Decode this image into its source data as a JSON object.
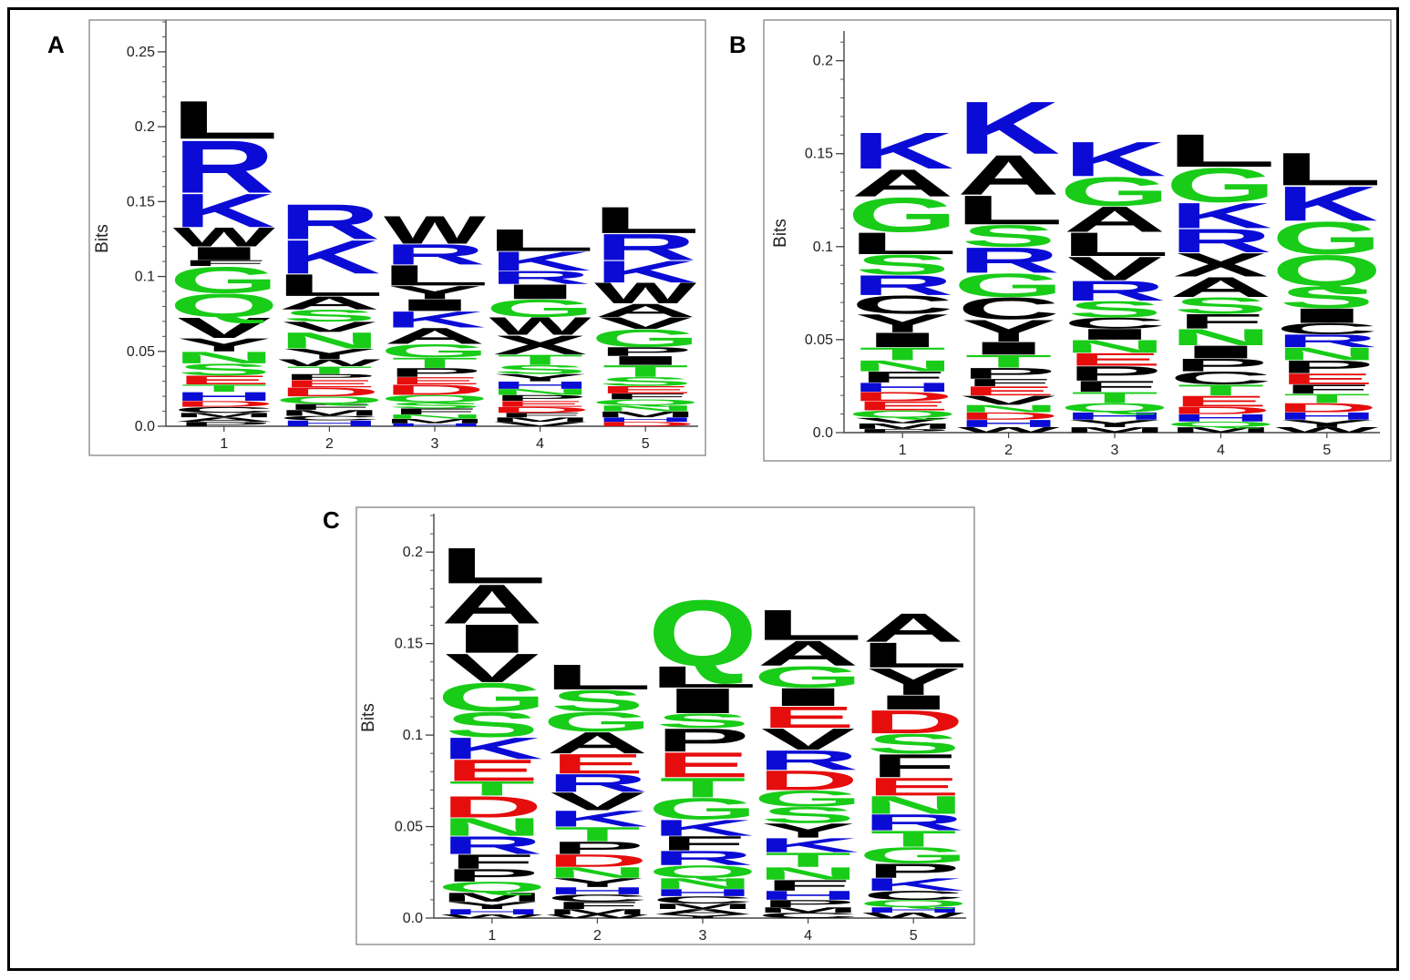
{
  "colors": {
    "hydrophobic": "#000000",
    "basic": "#0b0bd6",
    "acidic": "#e60d0d",
    "polar": "#18cc18"
  },
  "chart_data": [
    {
      "type": "sequence-logo",
      "panel": "A",
      "ylabel": "Bits",
      "ylim": [
        0,
        0.27
      ],
      "yticks": [
        0.0,
        0.05,
        0.1,
        0.15,
        0.2,
        0.25
      ],
      "ytick_labels": [
        "0.0",
        "0.05",
        "0.1",
        "0.15",
        "0.2",
        "0.25"
      ],
      "positions": [
        "1",
        "2",
        "3",
        "4",
        "5"
      ],
      "stacks": [
        [
          [
            "L",
            0.026
          ],
          [
            "R",
            0.036
          ],
          [
            "K",
            0.023
          ],
          [
            "W",
            0.013
          ],
          [
            "I",
            0.009
          ],
          [
            "F",
            0.004
          ],
          [
            "G",
            0.018
          ],
          [
            "Q",
            0.016
          ],
          [
            "V",
            0.014
          ],
          [
            "Y",
            0.009
          ],
          [
            "N",
            0.008
          ],
          [
            "S",
            0.008
          ],
          [
            "E",
            0.006
          ],
          [
            "T",
            0.005
          ],
          [
            "H",
            0.006
          ],
          [
            "D",
            0.004
          ],
          [
            "C",
            0.004
          ],
          [
            "M",
            0.003
          ],
          [
            "A",
            0.003
          ],
          [
            "P",
            0.003
          ]
        ],
        [
          [
            "R",
            0.024
          ],
          [
            "K",
            0.023
          ],
          [
            "L",
            0.015
          ],
          [
            "A",
            0.009
          ],
          [
            "S",
            0.008
          ],
          [
            "V",
            0.007
          ],
          [
            "N",
            0.011
          ],
          [
            "Y",
            0.007
          ],
          [
            "W",
            0.005
          ],
          [
            "T",
            0.005
          ],
          [
            "P",
            0.004
          ],
          [
            "E",
            0.005
          ],
          [
            "D",
            0.006
          ],
          [
            "Q",
            0.005
          ],
          [
            "F",
            0.004
          ],
          [
            "M",
            0.004
          ],
          [
            "C",
            0.003
          ],
          [
            "H",
            0.004
          ]
        ],
        [
          [
            "W",
            0.019
          ],
          [
            "R",
            0.014
          ],
          [
            "L",
            0.014
          ],
          [
            "Y",
            0.009
          ],
          [
            "I",
            0.008
          ],
          [
            "K",
            0.011
          ],
          [
            "A",
            0.011
          ],
          [
            "G",
            0.009
          ],
          [
            "T",
            0.007
          ],
          [
            "P",
            0.006
          ],
          [
            "E",
            0.005
          ],
          [
            "D",
            0.007
          ],
          [
            "Q",
            0.005
          ],
          [
            "S",
            0.004
          ],
          [
            "F",
            0.004
          ],
          [
            "N",
            0.003
          ],
          [
            "M",
            0.003
          ],
          [
            "H",
            0.002
          ]
        ],
        [
          [
            "L",
            0.015
          ],
          [
            "K",
            0.013
          ],
          [
            "R",
            0.009
          ],
          [
            "I",
            0.01
          ],
          [
            "G",
            0.012
          ],
          [
            "W",
            0.012
          ],
          [
            "X",
            0.013
          ],
          [
            "T",
            0.007
          ],
          [
            "S",
            0.006
          ],
          [
            "Y",
            0.005
          ],
          [
            "H",
            0.005
          ],
          [
            "N",
            0.004
          ],
          [
            "P",
            0.004
          ],
          [
            "E",
            0.004
          ],
          [
            "D",
            0.004
          ],
          [
            "F",
            0.003
          ],
          [
            "M",
            0.003
          ],
          [
            "V",
            0.003
          ]
        ],
        [
          [
            "L",
            0.018
          ],
          [
            "R",
            0.018
          ],
          [
            "K",
            0.015
          ],
          [
            "W",
            0.014
          ],
          [
            "A",
            0.009
          ],
          [
            "V",
            0.008
          ],
          [
            "G",
            0.012
          ],
          [
            "P",
            0.006
          ],
          [
            "I",
            0.006
          ],
          [
            "T",
            0.008
          ],
          [
            "S",
            0.006
          ],
          [
            "E",
            0.005
          ],
          [
            "F",
            0.004
          ],
          [
            "Q",
            0.004
          ],
          [
            "N",
            0.004
          ],
          [
            "M",
            0.004
          ],
          [
            "H",
            0.003
          ],
          [
            "D",
            0.003
          ]
        ]
      ]
    },
    {
      "type": "sequence-logo",
      "panel": "B",
      "ylabel": "Bits",
      "ylim": [
        0,
        0.215
      ],
      "yticks": [
        0.0,
        0.05,
        0.1,
        0.15,
        0.2
      ],
      "ytick_labels": [
        "0.0",
        "0.05",
        "0.1",
        "0.15",
        "0.2"
      ],
      "positions": [
        "1",
        "2",
        "3",
        "4",
        "5"
      ],
      "stacks": [
        [
          [
            "K",
            0.02
          ],
          [
            "A",
            0.015
          ],
          [
            "G",
            0.019
          ],
          [
            "L",
            0.012
          ],
          [
            "S",
            0.011
          ],
          [
            "R",
            0.011
          ],
          [
            "C",
            0.01
          ],
          [
            "Y",
            0.01
          ],
          [
            "I",
            0.008
          ],
          [
            "T",
            0.007
          ],
          [
            "N",
            0.006
          ],
          [
            "F",
            0.006
          ],
          [
            "H",
            0.005
          ],
          [
            "D",
            0.005
          ],
          [
            "E",
            0.005
          ],
          [
            "Q",
            0.004
          ],
          [
            "V",
            0.003
          ],
          [
            "M",
            0.003
          ],
          [
            "P",
            0.002
          ]
        ],
        [
          [
            "K",
            0.029
          ],
          [
            "A",
            0.022
          ],
          [
            "L",
            0.016
          ],
          [
            "S",
            0.012
          ],
          [
            "R",
            0.014
          ],
          [
            "G",
            0.013
          ],
          [
            "C",
            0.012
          ],
          [
            "Y",
            0.012
          ],
          [
            "I",
            0.007
          ],
          [
            "T",
            0.007
          ],
          [
            "P",
            0.006
          ],
          [
            "F",
            0.004
          ],
          [
            "E",
            0.005
          ],
          [
            "V",
            0.005
          ],
          [
            "N",
            0.004
          ],
          [
            "D",
            0.004
          ],
          [
            "H",
            0.004
          ],
          [
            "W",
            0.003
          ]
        ],
        [
          [
            "K",
            0.019
          ],
          [
            "G",
            0.016
          ],
          [
            "A",
            0.014
          ],
          [
            "L",
            0.013
          ],
          [
            "V",
            0.013
          ],
          [
            "R",
            0.011
          ],
          [
            "S",
            0.009
          ],
          [
            "C",
            0.006
          ],
          [
            "I",
            0.006
          ],
          [
            "N",
            0.007
          ],
          [
            "E",
            0.007
          ],
          [
            "P",
            0.008
          ],
          [
            "F",
            0.006
          ],
          [
            "T",
            0.006
          ],
          [
            "Q",
            0.005
          ],
          [
            "H",
            0.004
          ],
          [
            "Y",
            0.004
          ],
          [
            "M",
            0.003
          ]
        ],
        [
          [
            "L",
            0.018
          ],
          [
            "G",
            0.019
          ],
          [
            "K",
            0.014
          ],
          [
            "R",
            0.013
          ],
          [
            "X",
            0.013
          ],
          [
            "A",
            0.011
          ],
          [
            "S",
            0.009
          ],
          [
            "F",
            0.008
          ],
          [
            "N",
            0.009
          ],
          [
            "I",
            0.007
          ],
          [
            "P",
            0.007
          ],
          [
            "C",
            0.007
          ],
          [
            "T",
            0.006
          ],
          [
            "E",
            0.006
          ],
          [
            "D",
            0.004
          ],
          [
            "H",
            0.004
          ],
          [
            "Q",
            0.003
          ],
          [
            "M",
            0.003
          ]
        ],
        [
          [
            "L",
            0.018
          ],
          [
            "K",
            0.019
          ],
          [
            "G",
            0.018
          ],
          [
            "Q",
            0.017
          ],
          [
            "S",
            0.012
          ],
          [
            "I",
            0.008
          ],
          [
            "C",
            0.006
          ],
          [
            "R",
            0.007
          ],
          [
            "N",
            0.007
          ],
          [
            "P",
            0.007
          ],
          [
            "E",
            0.006
          ],
          [
            "F",
            0.005
          ],
          [
            "T",
            0.005
          ],
          [
            "D",
            0.005
          ],
          [
            "H",
            0.004
          ],
          [
            "Y",
            0.004
          ],
          [
            "W",
            0.003
          ]
        ]
      ]
    },
    {
      "type": "sequence-logo",
      "panel": "C",
      "ylabel": "Bits",
      "ylim": [
        0,
        0.22
      ],
      "yticks": [
        0.0,
        0.05,
        0.1,
        0.15,
        0.2
      ],
      "ytick_labels": [
        "0.0",
        "0.05",
        "0.1",
        "0.15",
        "0.2"
      ],
      "positions": [
        "1",
        "2",
        "3",
        "4",
        "5"
      ],
      "stacks": [
        [
          [
            "L",
            0.02
          ],
          [
            "A",
            0.022
          ],
          [
            "I",
            0.016
          ],
          [
            "V",
            0.016
          ],
          [
            "G",
            0.016
          ],
          [
            "S",
            0.014
          ],
          [
            "K",
            0.012
          ],
          [
            "E",
            0.012
          ],
          [
            "T",
            0.008
          ],
          [
            "D",
            0.012
          ],
          [
            "N",
            0.01
          ],
          [
            "R",
            0.01
          ],
          [
            "F",
            0.008
          ],
          [
            "P",
            0.007
          ],
          [
            "Q",
            0.006
          ],
          [
            "M",
            0.005
          ],
          [
            "Y",
            0.004
          ],
          [
            "H",
            0.003
          ],
          [
            "W",
            0.002
          ]
        ],
        [
          [
            "L",
            0.014
          ],
          [
            "S",
            0.012
          ],
          [
            "G",
            0.011
          ],
          [
            "A",
            0.012
          ],
          [
            "E",
            0.011
          ],
          [
            "R",
            0.01
          ],
          [
            "V",
            0.01
          ],
          [
            "K",
            0.009
          ],
          [
            "T",
            0.008
          ],
          [
            "P",
            0.007
          ],
          [
            "D",
            0.007
          ],
          [
            "N",
            0.006
          ],
          [
            "Y",
            0.005
          ],
          [
            "H",
            0.004
          ],
          [
            "C",
            0.004
          ],
          [
            "F",
            0.004
          ],
          [
            "M",
            0.003
          ],
          [
            "W",
            0.002
          ]
        ],
        [
          [
            "Q",
            0.037
          ],
          [
            "L",
            0.012
          ],
          [
            "I",
            0.014
          ],
          [
            "S",
            0.008
          ],
          [
            "P",
            0.013
          ],
          [
            "E",
            0.014
          ],
          [
            "T",
            0.011
          ],
          [
            "G",
            0.012
          ],
          [
            "K",
            0.009
          ],
          [
            "F",
            0.008
          ],
          [
            "R",
            0.008
          ],
          [
            "Q",
            0.007
          ],
          [
            "N",
            0.006
          ],
          [
            "H",
            0.004
          ],
          [
            "C",
            0.004
          ],
          [
            "M",
            0.003
          ],
          [
            "A",
            0.003
          ],
          [
            "Y",
            0.002
          ]
        ],
        [
          [
            "L",
            0.017
          ],
          [
            "A",
            0.014
          ],
          [
            "G",
            0.012
          ],
          [
            "I",
            0.01
          ],
          [
            "E",
            0.012
          ],
          [
            "V",
            0.012
          ],
          [
            "R",
            0.011
          ],
          [
            "D",
            0.011
          ],
          [
            "G",
            0.009
          ],
          [
            "S",
            0.009
          ],
          [
            "Y",
            0.008
          ],
          [
            "K",
            0.008
          ],
          [
            "T",
            0.008
          ],
          [
            "N",
            0.007
          ],
          [
            "F",
            0.006
          ],
          [
            "H",
            0.005
          ],
          [
            "P",
            0.004
          ],
          [
            "M",
            0.003
          ],
          [
            "C",
            0.003
          ]
        ],
        [
          [
            "A",
            0.016
          ],
          [
            "L",
            0.014
          ],
          [
            "Y",
            0.015
          ],
          [
            "I",
            0.008
          ],
          [
            "D",
            0.013
          ],
          [
            "S",
            0.011
          ],
          [
            "F",
            0.013
          ],
          [
            "E",
            0.01
          ],
          [
            "N",
            0.01
          ],
          [
            "R",
            0.009
          ],
          [
            "T",
            0.009
          ],
          [
            "G",
            0.009
          ],
          [
            "P",
            0.008
          ],
          [
            "K",
            0.007
          ],
          [
            "C",
            0.005
          ],
          [
            "Q",
            0.004
          ],
          [
            "H",
            0.003
          ],
          [
            "W",
            0.003
          ]
        ]
      ]
    }
  ]
}
